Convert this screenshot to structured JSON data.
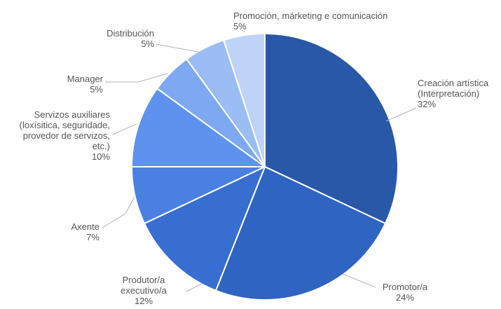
{
  "chart_data": {
    "type": "pie",
    "title": "",
    "slices": [
      {
        "label": "Creación artística (Interpretación)",
        "value": 32,
        "display": "32%",
        "color": "#2a58a8"
      },
      {
        "label": "Promotor/a",
        "value": 24,
        "display": "24%",
        "color": "#2f64c2"
      },
      {
        "label": "Produtor/a executivo/a",
        "value": 12,
        "display": "12%",
        "color": "#386ed0"
      },
      {
        "label": "Axente",
        "value": 7,
        "display": "7%",
        "color": "#4a80e2"
      },
      {
        "label": "Servizos auxiliares (loxísitica, seguridade, provedor de servizos, etc.)",
        "value": 10,
        "display": "10%",
        "color": "#5f92ee"
      },
      {
        "label": "Manager",
        "value": 5,
        "display": "5%",
        "color": "#7ea8f2"
      },
      {
        "label": "Distribución",
        "value": 5,
        "display": "5%",
        "color": "#9bbcf5"
      },
      {
        "label": "Promoción, márketing e comunicación",
        "value": 5,
        "display": "5%",
        "color": "#bfd3f8"
      }
    ]
  }
}
